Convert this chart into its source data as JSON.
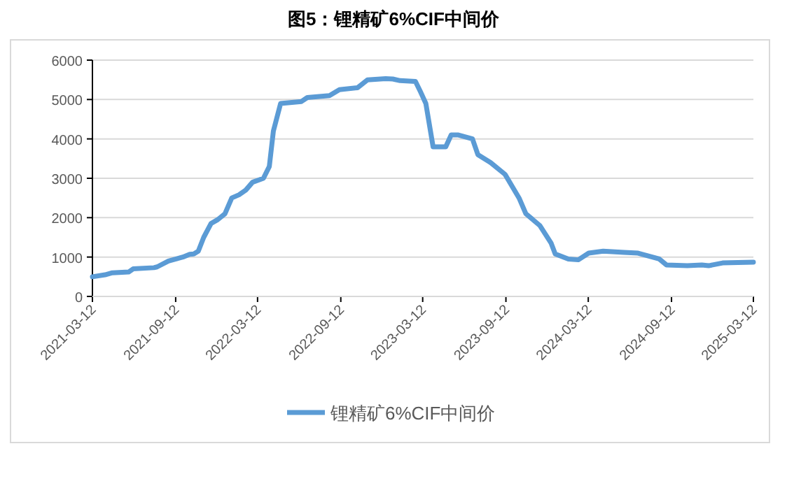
{
  "chart_data": {
    "type": "line",
    "title": "图5：锂精矿6%CIF中间价",
    "x": [
      "2021-03-12",
      "2021-04-09",
      "2021-04-25",
      "2021-05-31",
      "2021-06-10",
      "2021-07-26",
      "2021-08-02",
      "2021-08-27",
      "2021-09-28",
      "2021-10-13",
      "2021-10-22",
      "2021-11-01",
      "2021-11-13",
      "2021-11-29",
      "2021-12-14",
      "2021-12-30",
      "2022-01-14",
      "2022-01-30",
      "2022-02-14",
      "2022-03-01",
      "2022-03-25",
      "2022-04-07",
      "2022-04-16",
      "2022-05-02",
      "2022-06-17",
      "2022-06-30",
      "2022-08-18",
      "2022-09-09",
      "2022-10-19",
      "2022-11-10",
      "2022-12-20",
      "2023-01-05",
      "2023-01-21",
      "2023-02-24",
      "2023-03-07",
      "2023-03-19",
      "2023-04-04",
      "2023-05-02",
      "2023-05-14",
      "2023-05-30",
      "2023-06-30",
      "2023-07-12",
      "2023-08-09",
      "2023-09-10",
      "2023-10-11",
      "2023-10-26",
      "2023-11-26",
      "2023-12-21",
      "2023-12-30",
      "2024-01-28",
      "2024-02-19",
      "2024-03-13",
      "2024-04-14",
      "2024-05-30",
      "2024-06-30",
      "2024-08-16",
      "2024-09-01",
      "2024-10-17",
      "2024-11-18",
      "2024-12-03",
      "2025-01-03",
      "2025-03-12"
    ],
    "series": [
      {
        "name": "锂精矿6%CIF中间价",
        "color": "#5b9bd5",
        "values": [
          500,
          550,
          600,
          620,
          700,
          730,
          750,
          900,
          1000,
          1070,
          1080,
          1150,
          1500,
          1850,
          1950,
          2100,
          2500,
          2580,
          2700,
          2900,
          3000,
          3300,
          4200,
          4900,
          4950,
          5050,
          5100,
          5250,
          5300,
          5500,
          5530,
          5520,
          5480,
          5460,
          5200,
          4900,
          3800,
          3800,
          4100,
          4100,
          4000,
          3600,
          3400,
          3100,
          2500,
          2100,
          1800,
          1350,
          1080,
          950,
          930,
          1100,
          1150,
          1120,
          1100,
          950,
          800,
          780,
          800,
          780,
          850,
          870
        ]
      }
    ],
    "xlim": [
      "2021-03-12",
      "2025-03-12"
    ],
    "xticks": [
      "2021-03-12",
      "2021-09-12",
      "2022-03-12",
      "2022-09-12",
      "2023-03-12",
      "2023-09-12",
      "2024-03-12",
      "2024-09-12",
      "2025-03-12"
    ],
    "ylim": [
      0,
      6000
    ],
    "yticks": [
      0,
      1000,
      2000,
      3000,
      4000,
      5000,
      6000
    ],
    "grid": "y",
    "legend": "bottom",
    "marker": "none",
    "line_style": "solid"
  }
}
